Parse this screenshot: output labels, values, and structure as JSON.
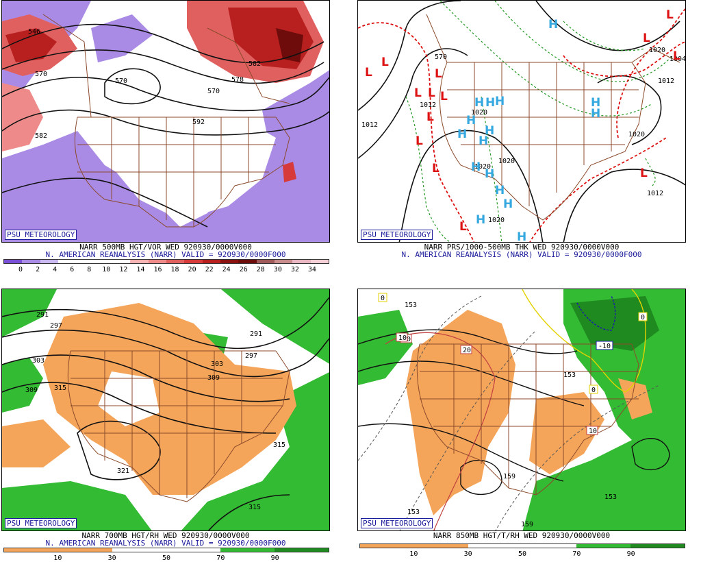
{
  "branding": {
    "label": "PSU METEOROLOGY"
  },
  "colors": {
    "vort_purple": "#9b7ee0",
    "vort_red": "#d63a3a",
    "vort_dark": "#8b1010",
    "dry_orange": "#f5a55a",
    "moist_green": "#33bb33",
    "moist_dark": "#1f8a1f",
    "border_brown": "#8b4a2b",
    "contour": "#111111",
    "high_blue": "#35a8e0",
    "low_red": "#dd1111",
    "thick_red": "#dd1111",
    "thick_green": "#229922"
  },
  "panels": [
    {
      "id": "p500",
      "caption_line1": "NARR 500MB HGT/VOR WED 920930/0000V000",
      "caption_line2": "N. AMERICAN REANALYSIS (NARR) VALID = 920930/0000F000",
      "colorbar": {
        "colors": [
          "#7a4fd8",
          "#a98be6",
          "#c9b9f0",
          "#ffffff",
          "#ffffff",
          "#ffffff",
          "#ffffff",
          "#f6b3b3",
          "#ee8a8a",
          "#e06060",
          "#d63a3a",
          "#b82020",
          "#8b1010",
          "#6e0b0b",
          "#a05a5a",
          "#c88c8c",
          "#e8b5c3",
          "#f3cfd8"
        ],
        "ticks": [
          "0",
          "2",
          "4",
          "6",
          "8",
          "10",
          "12",
          "14",
          "16",
          "18",
          "20",
          "22",
          "24",
          "26",
          "28",
          "30",
          "32",
          "34"
        ]
      },
      "contour_labels": [
        "546",
        "570",
        "570",
        "578",
        "582",
        "592",
        "570",
        "582"
      ]
    },
    {
      "id": "pprs",
      "caption_line1": "NARR PRS/1000-500MB THK WED 920930/0000V000",
      "caption_line2": "N. AMERICAN REANALYSIS (NARR) VALID = 920930/0000F000",
      "contour_labels": [
        "1012",
        "1020",
        "1020",
        "1020",
        "1020",
        "1020",
        "1012",
        "1012",
        "1004",
        "1020",
        "1012",
        "570"
      ],
      "highs": [
        "H",
        "H",
        "H",
        "H",
        "H",
        "H",
        "H",
        "H",
        "H",
        "H",
        "H",
        "H",
        "H",
        "H",
        "H",
        "H"
      ],
      "lows": [
        "L",
        "L",
        "L",
        "L",
        "L",
        "L",
        "L",
        "L",
        "L",
        "L",
        "L",
        "L",
        "L",
        "L"
      ]
    },
    {
      "id": "p700",
      "caption_line1": "NARR 700MB HGT/RH WED 920930/0000V000",
      "caption_line2": "N. AMERICAN REANALYSIS (NARR) VALID = 920930/0000F000",
      "colorbar": {
        "colors": [
          "#f5a55a",
          "#f5a55a",
          "#f5a55a",
          "#f5a55a",
          "#ffffff",
          "#ffffff",
          "#ffffff",
          "#ffffff",
          "#33bb33",
          "#33bb33",
          "#1f8a1f",
          "#1f8a1f"
        ],
        "ticks": [
          "10",
          "30",
          "50",
          "70",
          "90"
        ]
      },
      "contour_labels": [
        "291",
        "297",
        "303",
        "309",
        "315",
        "303",
        "309",
        "291",
        "297",
        "315",
        "321",
        "315"
      ]
    },
    {
      "id": "p850",
      "caption_line1": "NARR 850MB HGT/T/RH WED 920930/0000V000",
      "colorbar": {
        "colors": [
          "#f5a55a",
          "#f5a55a",
          "#f5a55a",
          "#f5a55a",
          "#ffffff",
          "#ffffff",
          "#ffffff",
          "#ffffff",
          "#33bb33",
          "#33bb33",
          "#1f8a1f",
          "#1f8a1f"
        ],
        "ticks": [
          "10",
          "30",
          "50",
          "70",
          "90"
        ]
      },
      "contour_labels": [
        "153",
        "153",
        "159",
        "153",
        "159",
        "153"
      ],
      "temp_labels": [
        "10",
        "20",
        "10",
        "0",
        "-10",
        "0",
        "0",
        "10"
      ]
    }
  ]
}
